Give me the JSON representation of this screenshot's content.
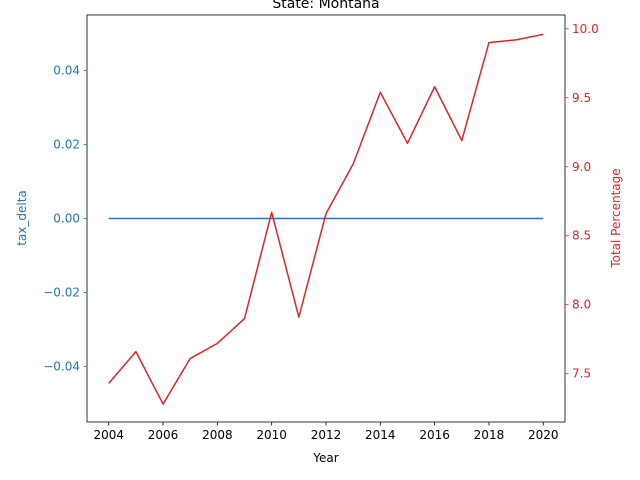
{
  "chart_data": {
    "type": "line",
    "title": "State: Montana",
    "xlabel": "Year",
    "ylabel_left": "tax_delta",
    "ylabel_right": "Total Percentage",
    "xlim": [
      2003.2,
      2020.8
    ],
    "ylim_left": [
      -0.055,
      0.055
    ],
    "ylim_right": [
      7.15,
      10.1
    ],
    "x_ticks": [
      "2004",
      "2006",
      "2008",
      "2010",
      "2012",
      "2014",
      "2016",
      "2018",
      "2020"
    ],
    "y_left_ticks": [
      "0.04",
      "0.02",
      "0.00",
      "−0.02",
      "−0.04"
    ],
    "y_right_ticks": [
      "10.0",
      "9.5",
      "9.0",
      "8.5",
      "8.0",
      "7.5"
    ],
    "left_color": "#1f77b4",
    "right_color": "#d62728",
    "grid": false,
    "x": [
      2004,
      2005,
      2006,
      2007,
      2008,
      2009,
      2010,
      2011,
      2012,
      2013,
      2014,
      2015,
      2016,
      2017,
      2018,
      2019,
      2020
    ],
    "series": [
      {
        "axis": "left",
        "color": "#1f77b4",
        "values": [
          0,
          0,
          0,
          0,
          0,
          0,
          0,
          0,
          0,
          0,
          0,
          0,
          0,
          0,
          0,
          0,
          0
        ]
      },
      {
        "axis": "right",
        "color": "#d62728",
        "values": [
          7.43,
          7.66,
          7.28,
          7.61,
          7.72,
          7.9,
          8.67,
          7.91,
          8.66,
          9.02,
          9.54,
          9.17,
          9.58,
          9.19,
          9.9,
          9.92,
          9.96
        ]
      }
    ]
  }
}
